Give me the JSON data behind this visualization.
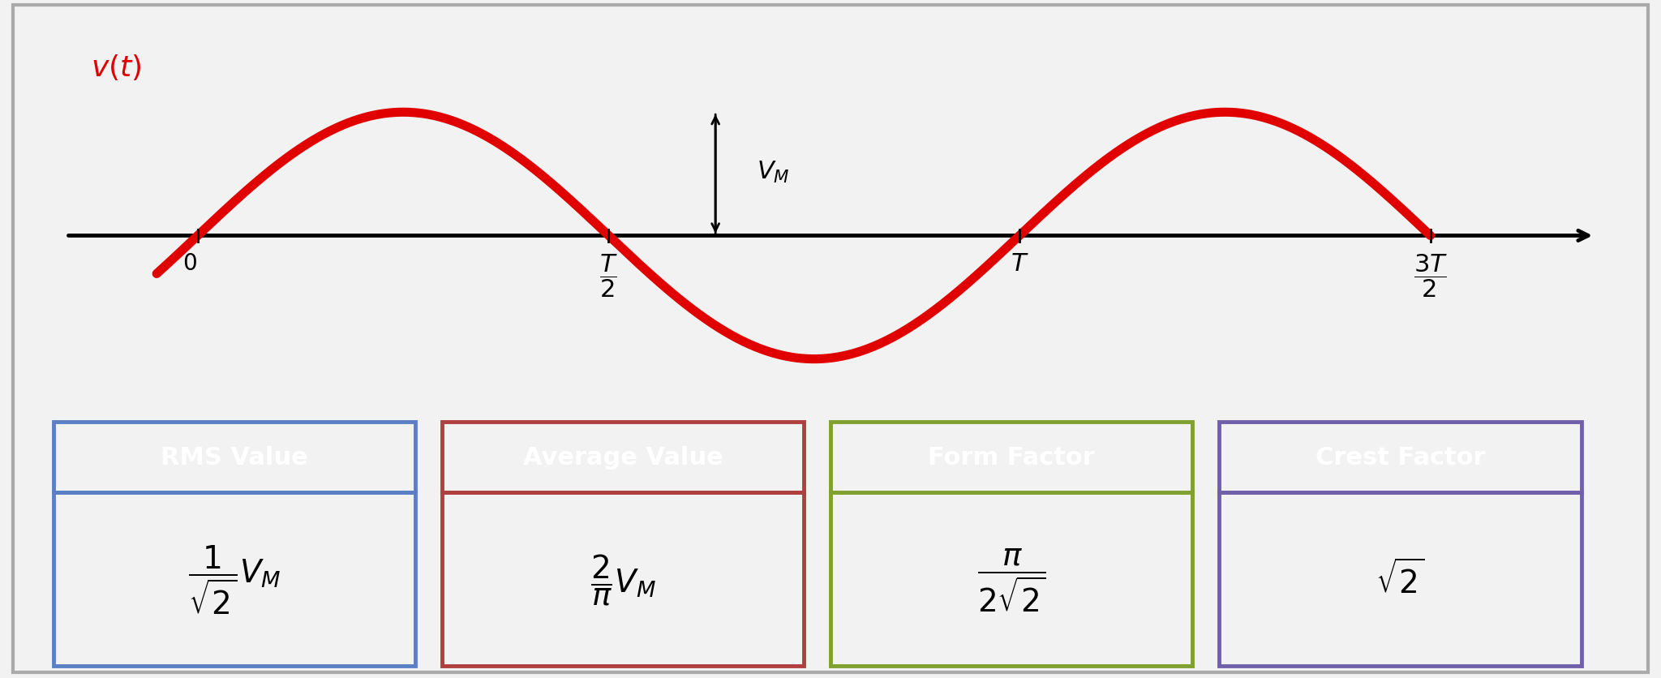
{
  "background_color": "#f2f2f2",
  "inner_bg": "#ffffff",
  "sine_color": "#e00000",
  "sine_linewidth": 8,
  "axis_color": "#000000",
  "arrow_color": "#000000",
  "boxes": [
    {
      "title": "RMS Value",
      "title_bg": "#5b7fc4",
      "border_color": "#5b7fc4",
      "formula": "$\\dfrac{1}{\\sqrt{2}}V_M$"
    },
    {
      "title": "Average Value",
      "title_bg": "#b04040",
      "border_color": "#b04040",
      "formula": "$\\dfrac{2}{\\pi}V_M$"
    },
    {
      "title": "Form Factor",
      "title_bg": "#80a030",
      "border_color": "#80a030",
      "formula": "$\\dfrac{\\pi}{2\\sqrt{2}}$"
    },
    {
      "title": "Crest Factor",
      "title_bg": "#7060aa",
      "border_color": "#7060aa",
      "formula": "$\\sqrt{2}$"
    }
  ],
  "title_fontsize": 22,
  "formula_fontsize": 28,
  "label_fontsize": 19,
  "outer_border_color": "#aaaaaa"
}
